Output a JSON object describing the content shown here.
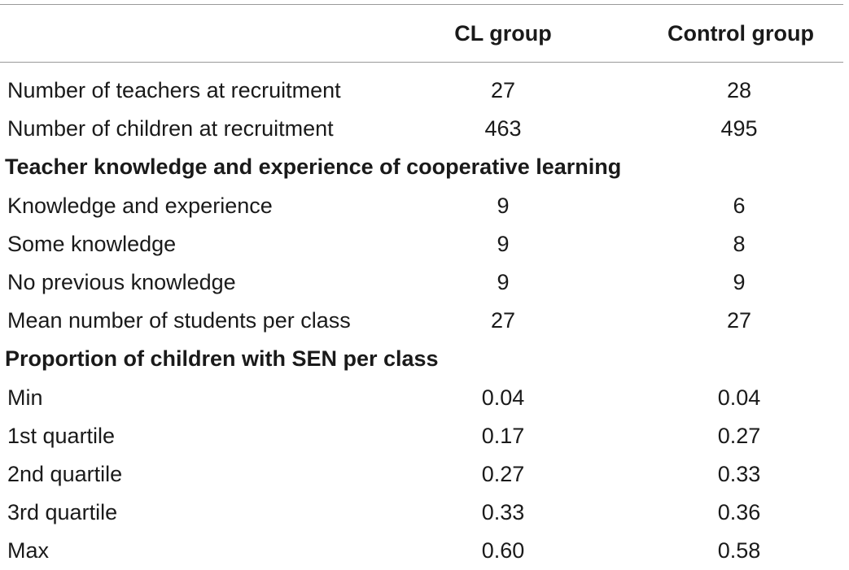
{
  "table": {
    "columns": [
      "",
      "CL group",
      "Control group"
    ],
    "rows": [
      {
        "kind": "data",
        "label": "Number of teachers at recruitment",
        "cl": "27",
        "control": "28"
      },
      {
        "kind": "data",
        "label": "Number of children at recruitment",
        "cl": "463",
        "control": "495"
      },
      {
        "kind": "section",
        "label": "Teacher knowledge and experience of cooperative learning"
      },
      {
        "kind": "data",
        "label": "Knowledge and experience",
        "cl": "9",
        "control": "6"
      },
      {
        "kind": "data",
        "label": "Some knowledge",
        "cl": "9",
        "control": "8"
      },
      {
        "kind": "data",
        "label": "No previous knowledge",
        "cl": "9",
        "control": "9"
      },
      {
        "kind": "data",
        "label": "Mean number of students per class",
        "cl": "27",
        "control": "27"
      },
      {
        "kind": "section",
        "label": "Proportion of children with SEN per class"
      },
      {
        "kind": "data",
        "label": "Min",
        "cl": "0.04",
        "control": "0.04"
      },
      {
        "kind": "data",
        "label": "1st quartile",
        "cl": "0.17",
        "control": "0.27"
      },
      {
        "kind": "data",
        "label": "2nd quartile",
        "cl": "0.27",
        "control": "0.33"
      },
      {
        "kind": "data",
        "label": "3rd quartile",
        "cl": "0.33",
        "control": "0.36"
      },
      {
        "kind": "data",
        "label": "Max",
        "cl": "0.60",
        "control": "0.58"
      }
    ]
  }
}
